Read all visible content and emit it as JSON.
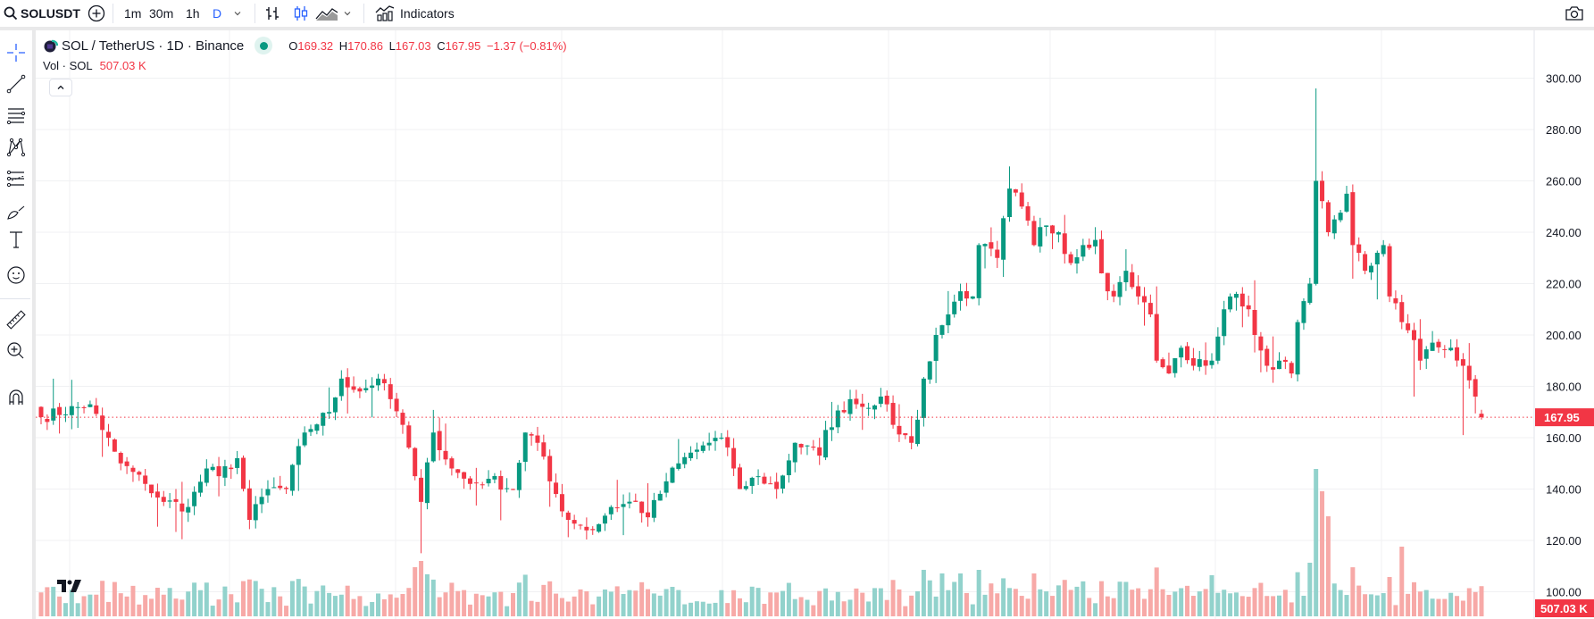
{
  "toolbar": {
    "symbol": "SOLUSDT",
    "intervals": [
      "1m",
      "30m",
      "1h",
      "D"
    ],
    "active_interval": "D",
    "indicators_label": "Indicators"
  },
  "legend": {
    "title": "SOL / TetherUS · 1D · Binance",
    "o_label": "O",
    "open": "169.32",
    "h_label": "H",
    "high": "170.86",
    "l_label": "L",
    "low": "167.03",
    "c_label": "C",
    "close": "167.95",
    "change": "−1.37 (−0.81%)",
    "vol_label": "Vol · SOL",
    "vol_value": "507.03 K"
  },
  "price_axis": {
    "ticks": [
      "300.00",
      "280.00",
      "260.00",
      "240.00",
      "220.00",
      "200.00",
      "180.00",
      "160.00",
      "140.00",
      "120.00",
      "100.00"
    ],
    "last_price_label": "167.95",
    "last_volume_label": "507.03 K"
  },
  "last_candle": {
    "open": 169.32,
    "high": 170.86,
    "low": 167.03,
    "close": 167.95
  },
  "colors": {
    "up": "#089981",
    "down": "#f23645",
    "up_volume": "#92d2cc",
    "down_volume": "#f7a9a7",
    "accent": "#2962ff"
  },
  "sidebar": {
    "tools": [
      "crosshair",
      "trend-line",
      "fib-retracement",
      "xabcd-pattern",
      "forecasting",
      "brush",
      "text",
      "emoji",
      "ruler",
      "zoom-in",
      "magnet"
    ]
  }
}
